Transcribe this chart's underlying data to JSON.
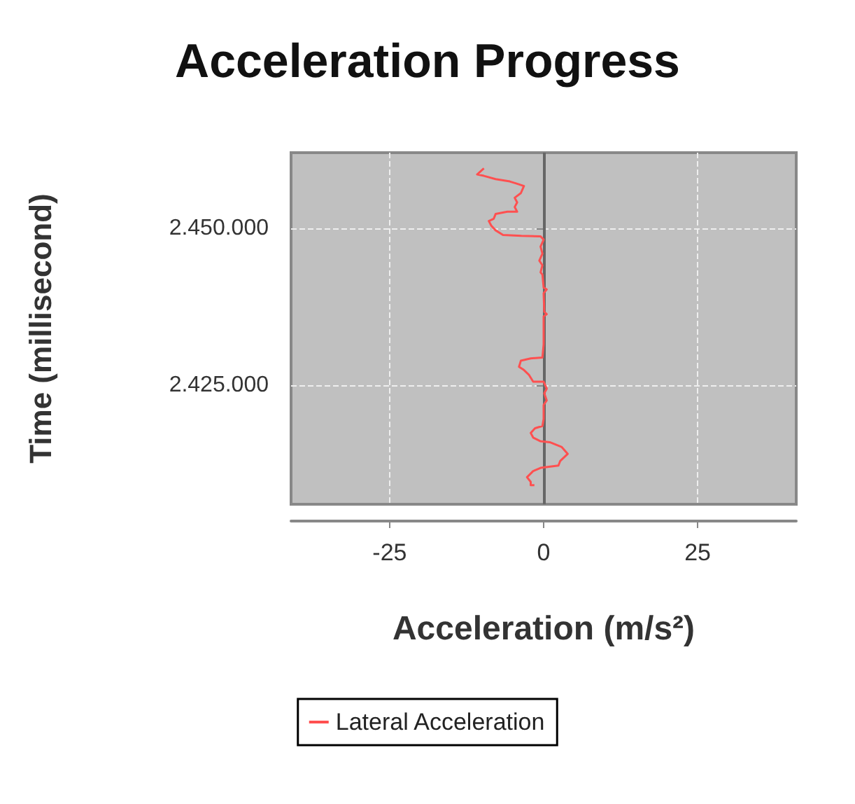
{
  "chart_data": {
    "type": "line",
    "title": "Acceleration Progress",
    "xlabel": "Acceleration (m/s²)",
    "ylabel": "Time (millisecond)",
    "xlim": [
      -41,
      41
    ],
    "xticks": [
      -25,
      0,
      25
    ],
    "ylim": [
      2406000,
      2462000
    ],
    "yticks": [
      {
        "value": 2425000,
        "label": "2.425.000"
      },
      {
        "value": 2450000,
        "label": "2.450.000"
      }
    ],
    "series": [
      {
        "name": "Lateral Acceleration",
        "color": "#ff5050",
        "x": [
          -1.5,
          -2.1,
          -2.1,
          -2.7,
          -1.7,
          -0.5,
          2.4,
          2.7,
          3.9,
          2.9,
          1.0,
          -0.5,
          -1.7,
          -2.1,
          -1.4,
          -0.2,
          0,
          0,
          0.5,
          0.1,
          0.5,
          0,
          -1.7,
          -2.4,
          -3.2,
          -4.0,
          -3.7,
          -2.1,
          -0.2,
          0,
          0,
          0.5,
          0.1,
          0,
          0.5,
          0,
          -0.2,
          -0.5,
          -0.2,
          -0.7,
          -0.2,
          -0.5,
          0,
          -0.5,
          -3.6,
          -6.6,
          -7.8,
          -8.5,
          -8.9,
          -8.1,
          -7.8,
          -5.9,
          -4.3,
          -4.7,
          -4.3,
          -4.7,
          -3.7,
          -3.2,
          -4.3,
          -5.5,
          -7.8,
          -9.7,
          -10.8,
          -9.7
        ],
        "values": [
          2409050,
          2409050,
          2409570,
          2410310,
          2411280,
          2411800,
          2412170,
          2412910,
          2414020,
          2415140,
          2415880,
          2416030,
          2416620,
          2417360,
          2418100,
          2418470,
          2419590,
          2421810,
          2422550,
          2423670,
          2424410,
          2425520,
          2425520,
          2426630,
          2427380,
          2427890,
          2428860,
          2429230,
          2429380,
          2431460,
          2435910,
          2436280,
          2436650,
          2439620,
          2440210,
          2440510,
          2442580,
          2442950,
          2444070,
          2444810,
          2445920,
          2447030,
          2448150,
          2448660,
          2448740,
          2448890,
          2449630,
          2450370,
          2451110,
          2451480,
          2452230,
          2452600,
          2452600,
          2453340,
          2454080,
          2454820,
          2455560,
          2456680,
          2457050,
          2457420,
          2457790,
          2458310,
          2458530,
          2459500
        ]
      }
    ],
    "ref_lines": [
      {
        "axis": "x",
        "value": 0,
        "color": "#666666"
      }
    ],
    "grid": true,
    "legend": "bottom",
    "marker": "none",
    "line_style": "solid"
  }
}
